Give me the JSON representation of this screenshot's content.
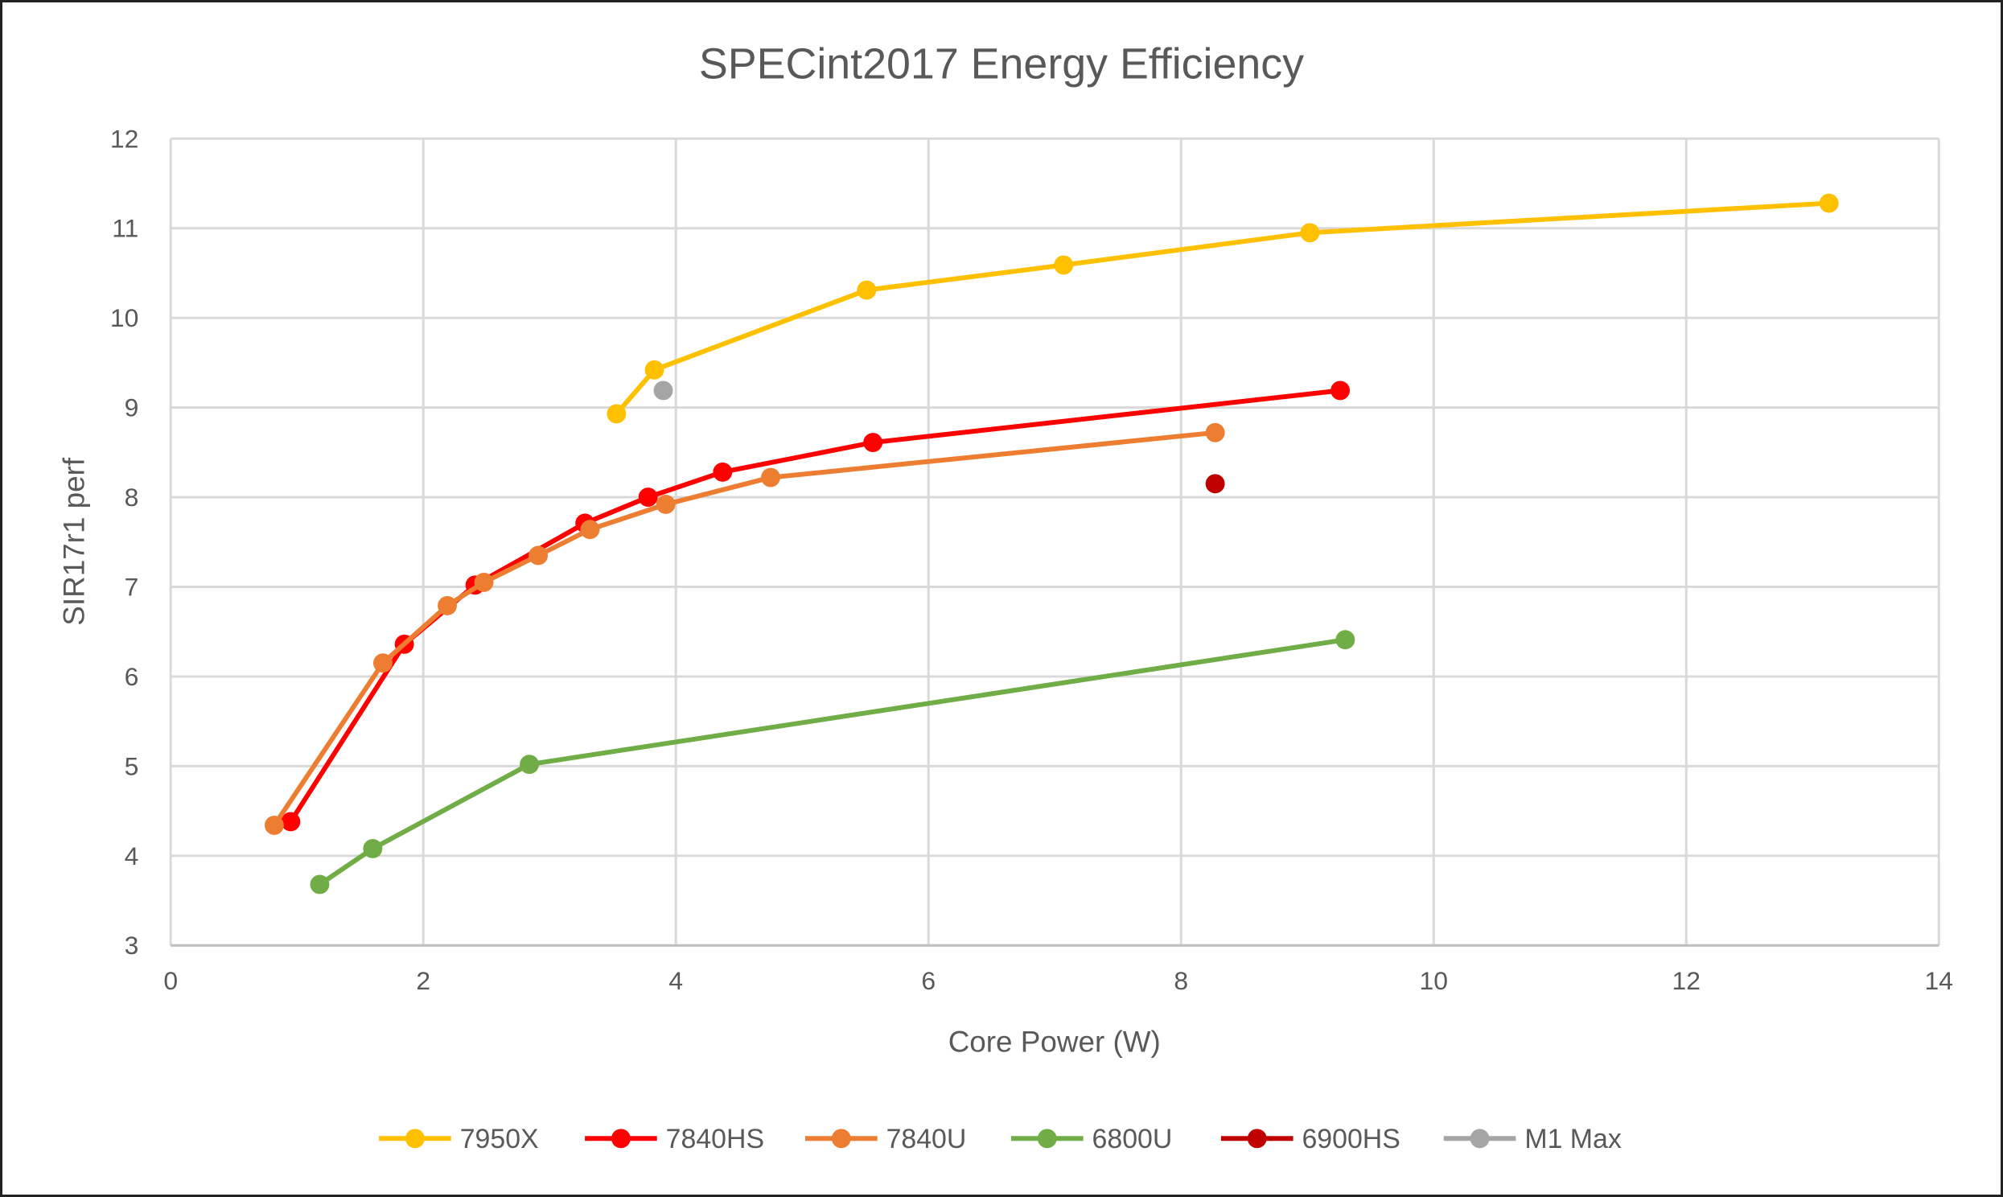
{
  "chart_data": {
    "type": "line",
    "title": "SPECint2017 Energy Efficiency",
    "xlabel": "Core Power (W)",
    "ylabel": "SIR17r1 perf",
    "xlim": [
      0,
      14
    ],
    "ylim": [
      3,
      12
    ],
    "xticks": [
      0,
      2,
      4,
      6,
      8,
      10,
      12,
      14
    ],
    "yticks": [
      3,
      4,
      5,
      6,
      7,
      8,
      9,
      10,
      11,
      12
    ],
    "grid": true,
    "legend": "bottom",
    "series": [
      {
        "name": "7950X",
        "color": "#FFC000",
        "points": [
          [
            3.53,
            8.93
          ],
          [
            3.83,
            9.42
          ],
          [
            5.51,
            10.31
          ],
          [
            7.07,
            10.59
          ],
          [
            9.02,
            10.95
          ],
          [
            13.13,
            11.28
          ]
        ]
      },
      {
        "name": "7840HS",
        "color": "#FF0000",
        "points": [
          [
            0.95,
            4.38
          ],
          [
            1.85,
            6.36
          ],
          [
            2.41,
            7.02
          ],
          [
            3.28,
            7.71
          ],
          [
            3.78,
            8.0
          ],
          [
            4.37,
            8.28
          ],
          [
            5.56,
            8.61
          ],
          [
            9.26,
            9.19
          ]
        ]
      },
      {
        "name": "7840U",
        "color": "#ED7D31",
        "points": [
          [
            0.82,
            4.34
          ],
          [
            1.68,
            6.15
          ],
          [
            2.19,
            6.79
          ],
          [
            2.48,
            7.05
          ],
          [
            2.91,
            7.35
          ],
          [
            3.32,
            7.64
          ],
          [
            3.92,
            7.92
          ],
          [
            4.75,
            8.22
          ],
          [
            8.27,
            8.72
          ]
        ]
      },
      {
        "name": "6800U",
        "color": "#70AD47",
        "points": [
          [
            1.18,
            3.68
          ],
          [
            1.6,
            4.08
          ],
          [
            2.84,
            5.02
          ],
          [
            9.3,
            6.41
          ]
        ]
      },
      {
        "name": "6900HS",
        "color": "#C00000",
        "points": [
          [
            8.27,
            8.15
          ]
        ]
      },
      {
        "name": "M1 Max",
        "color": "#A5A5A5",
        "points": [
          [
            3.9,
            9.19
          ]
        ]
      }
    ]
  }
}
